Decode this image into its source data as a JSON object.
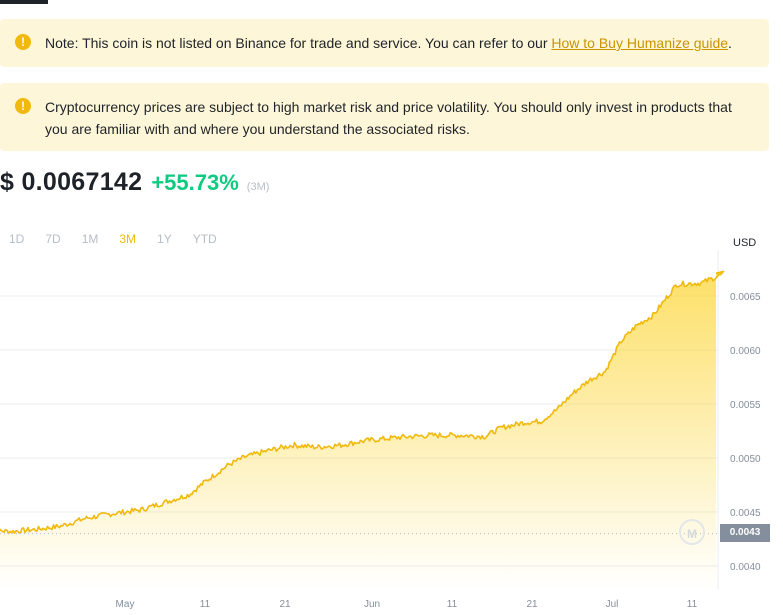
{
  "notices": {
    "listing": {
      "icon": "warning-icon",
      "text": "Note: This coin is not listed on Binance for trade and service. You can refer to our ",
      "link": "How to Buy Humanize guide",
      "suffix": "."
    },
    "risk": {
      "icon": "warning-icon",
      "text": "Cryptocurrency prices are subject to high market risk and price volatility. You should only invest in products that you are familiar with and where you understand the associated risks."
    }
  },
  "price": {
    "value": "$ 0.0067142",
    "change": "+55.73%",
    "period": "(3M)"
  },
  "ranges": [
    "1D",
    "7D",
    "1M",
    "3M",
    "1Y",
    "YTD"
  ],
  "active_range": "3M",
  "chart_data": {
    "type": "area",
    "unit": "USD",
    "current_price_label": "0.0043",
    "y_ticks": [
      "0.0065",
      "0.0060",
      "0.0055",
      "0.0050",
      "0.0045",
      "0.0040"
    ],
    "x_ticks": [
      "May",
      "11",
      "21",
      "Jun",
      "11",
      "21",
      "Jul",
      "11"
    ],
    "ylim": [
      0.0038,
      0.0069
    ],
    "x": [
      "Apr 14",
      "Apr 17",
      "Apr 20",
      "Apr 23",
      "Apr 26",
      "Apr 29",
      "May 2",
      "May 5",
      "May 8",
      "May 10",
      "May 13",
      "May 15",
      "May 18",
      "May 21",
      "May 24",
      "May 27",
      "May 30",
      "Jun 3",
      "Jun 7",
      "Jun 11",
      "Jun 14",
      "Jun 16",
      "Jun 19",
      "Jun 21",
      "Jun 23",
      "Jun 25",
      "Jun 27",
      "Jun 29",
      "Jul 1",
      "Jul 3",
      "Jul 5",
      "Jul 8",
      "Jul 11",
      "Jul 14"
    ],
    "values": [
      0.00433,
      0.00432,
      0.00434,
      0.00437,
      0.00444,
      0.00448,
      0.00452,
      0.00459,
      0.00466,
      0.00478,
      0.00494,
      0.00501,
      0.00507,
      0.00512,
      0.0051,
      0.00512,
      0.00516,
      0.00519,
      0.00521,
      0.00521,
      0.0052,
      0.00528,
      0.00533,
      0.00534,
      0.00545,
      0.0056,
      0.00572,
      0.0058,
      0.00608,
      0.00623,
      0.00632,
      0.00661,
      0.00662,
      0.00671
    ]
  },
  "colors": {
    "line": "#f0b90b",
    "fill_top": "#fcd535",
    "up": "#0ecb81",
    "notice_bg": "#fef6d8",
    "link": "#c99400"
  }
}
